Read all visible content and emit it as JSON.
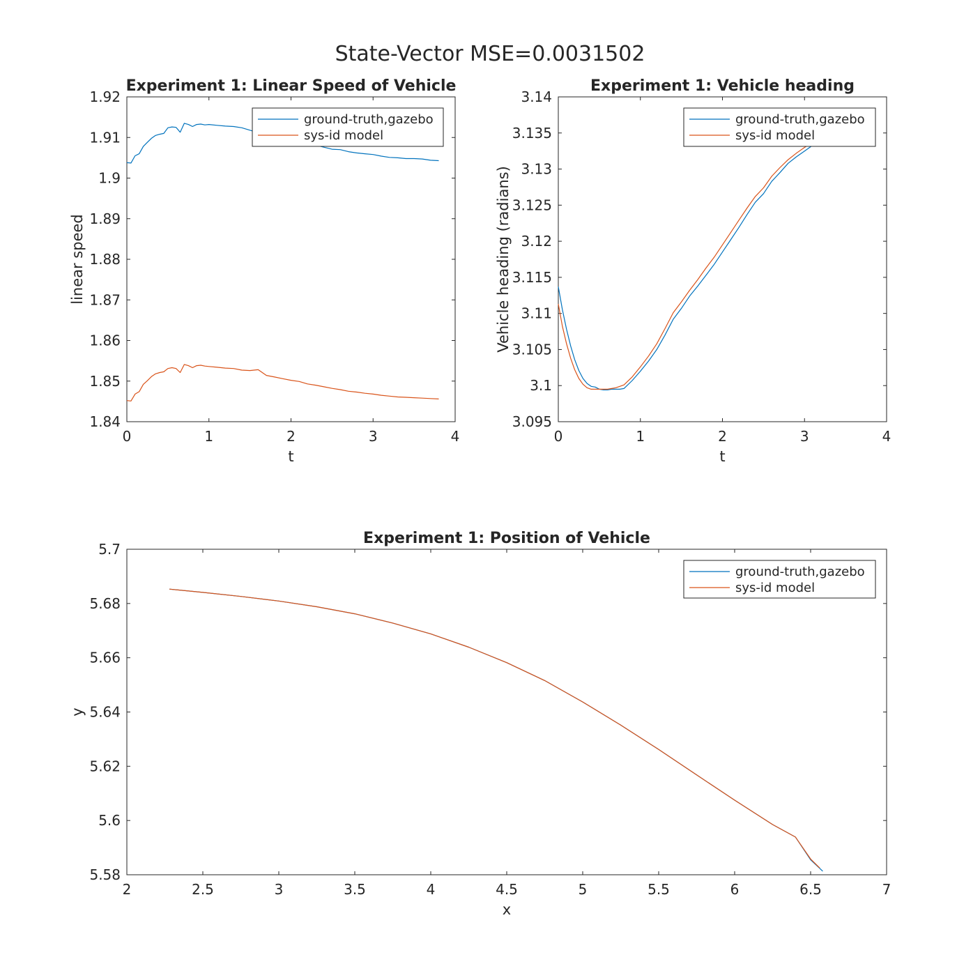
{
  "figure": {
    "title": "State-Vector MSE=0.0031502"
  },
  "colors": {
    "ground_truth": "#0072bd",
    "sysid": "#d95319",
    "axis": "#262626"
  },
  "chart_data": [
    {
      "id": "speed",
      "type": "line",
      "title": "Experiment 1: Linear Speed of Vehicle",
      "xlabel": "t",
      "ylabel": "linear speed",
      "xlim": [
        0,
        4
      ],
      "ylim": [
        1.84,
        1.92
      ],
      "xticks": [
        0,
        1,
        2,
        3,
        4
      ],
      "xtick_labels": [
        "0",
        "1",
        "2",
        "3",
        "4"
      ],
      "yticks": [
        1.84,
        1.85,
        1.86,
        1.87,
        1.88,
        1.89,
        1.9,
        1.91,
        1.92
      ],
      "ytick_labels": [
        "1.84",
        "1.85",
        "1.86",
        "1.87",
        "1.88",
        "1.89",
        "1.9",
        "1.91",
        "1.92"
      ],
      "legend": {
        "position": "top-right",
        "entries": [
          "ground-truth,gazebo",
          "sys-id model"
        ]
      },
      "grid": false,
      "series": [
        {
          "name": "ground-truth,gazebo",
          "color": "#0072bd",
          "x": [
            0,
            0.05,
            0.1,
            0.15,
            0.2,
            0.25,
            0.3,
            0.35,
            0.4,
            0.45,
            0.5,
            0.55,
            0.6,
            0.65,
            0.7,
            0.75,
            0.8,
            0.85,
            0.9,
            0.95,
            1.0,
            1.1,
            1.2,
            1.3,
            1.4,
            1.5,
            1.6,
            1.7,
            1.8,
            1.9,
            2.0,
            2.1,
            2.2,
            2.3,
            2.4,
            2.5,
            2.6,
            2.7,
            2.8,
            2.9,
            3.0,
            3.1,
            3.2,
            3.3,
            3.4,
            3.5,
            3.6,
            3.7,
            3.8
          ],
          "y": [
            1.9038,
            1.9037,
            1.9055,
            1.906,
            1.9078,
            1.9088,
            1.9098,
            1.9105,
            1.9108,
            1.911,
            1.9124,
            1.9126,
            1.9125,
            1.9113,
            1.9135,
            1.9132,
            1.9127,
            1.9132,
            1.9133,
            1.9131,
            1.9132,
            1.913,
            1.9128,
            1.9127,
            1.9124,
            1.9118,
            1.9112,
            1.911,
            1.9102,
            1.9098,
            1.9093,
            1.9088,
            1.9083,
            1.9081,
            1.9076,
            1.9071,
            1.907,
            1.9065,
            1.9062,
            1.906,
            1.9058,
            1.9054,
            1.9051,
            1.905,
            1.9048,
            1.9048,
            1.9047,
            1.9044,
            1.9043
          ]
        },
        {
          "name": "sys-id model",
          "color": "#d95319",
          "x": [
            0,
            0.05,
            0.1,
            0.15,
            0.2,
            0.25,
            0.3,
            0.35,
            0.4,
            0.45,
            0.5,
            0.55,
            0.6,
            0.65,
            0.7,
            0.75,
            0.8,
            0.85,
            0.9,
            0.95,
            1.0,
            1.1,
            1.2,
            1.3,
            1.4,
            1.5,
            1.6,
            1.7,
            1.8,
            1.9,
            2.0,
            2.1,
            2.2,
            2.3,
            2.4,
            2.5,
            2.6,
            2.7,
            2.8,
            2.9,
            3.0,
            3.1,
            3.2,
            3.3,
            3.4,
            3.5,
            3.6,
            3.7,
            3.8
          ],
          "y": [
            1.8452,
            1.8451,
            1.8468,
            1.8474,
            1.8492,
            1.8501,
            1.8511,
            1.8518,
            1.8521,
            1.8523,
            1.8531,
            1.8533,
            1.8531,
            1.8521,
            1.8541,
            1.8538,
            1.8533,
            1.8538,
            1.8539,
            1.8537,
            1.8536,
            1.8534,
            1.8532,
            1.8531,
            1.8527,
            1.8526,
            1.8528,
            1.8514,
            1.851,
            1.8506,
            1.8502,
            1.8499,
            1.8493,
            1.849,
            1.8486,
            1.8482,
            1.8479,
            1.8475,
            1.8473,
            1.847,
            1.8468,
            1.8465,
            1.8463,
            1.8461,
            1.846,
            1.8459,
            1.8458,
            1.8457,
            1.8456
          ]
        }
      ]
    },
    {
      "id": "heading",
      "type": "line",
      "title": "Experiment 1: Vehicle heading",
      "xlabel": "t",
      "ylabel": "Vehicle heading (radians)",
      "xlim": [
        0,
        4
      ],
      "ylim": [
        3.095,
        3.14
      ],
      "xticks": [
        0,
        1,
        2,
        3,
        4
      ],
      "xtick_labels": [
        "0",
        "1",
        "2",
        "3",
        "4"
      ],
      "yticks": [
        3.095,
        3.1,
        3.105,
        3.11,
        3.115,
        3.12,
        3.125,
        3.13,
        3.135,
        3.14
      ],
      "ytick_labels": [
        "3.095",
        "3.1",
        "3.105",
        "3.11",
        "3.115",
        "3.12",
        "3.125",
        "3.13",
        "3.135",
        "3.14"
      ],
      "legend": {
        "position": "top-right",
        "entries": [
          "ground-truth,gazebo",
          "sys-id model"
        ]
      },
      "grid": false,
      "series": [
        {
          "name": "ground-truth,gazebo",
          "color": "#0072bd",
          "x": [
            0,
            0.05,
            0.1,
            0.15,
            0.2,
            0.25,
            0.3,
            0.35,
            0.4,
            0.45,
            0.5,
            0.55,
            0.6,
            0.65,
            0.7,
            0.75,
            0.8,
            0.9,
            1.0,
            1.1,
            1.2,
            1.3,
            1.4,
            1.5,
            1.6,
            1.7,
            1.8,
            1.9,
            2.0,
            2.1,
            2.2,
            2.3,
            2.4,
            2.5,
            2.6,
            2.7,
            2.8,
            2.9,
            3.0,
            3.1,
            3.2,
            3.3
          ],
          "y": [
            3.1137,
            3.1105,
            3.1078,
            3.1055,
            3.1036,
            3.1021,
            3.101,
            3.1003,
            3.0999,
            3.0998,
            3.0995,
            3.0994,
            3.0994,
            3.0995,
            3.0995,
            3.0995,
            3.0996,
            3.1007,
            3.102,
            3.1034,
            3.105,
            3.107,
            3.1092,
            3.1107,
            3.1124,
            3.1138,
            3.1153,
            3.1168,
            3.1185,
            3.1202,
            3.1219,
            3.1237,
            3.1254,
            3.1266,
            3.1283,
            3.1295,
            3.1308,
            3.1317,
            3.1325,
            3.1333,
            3.134,
            3.1346
          ]
        },
        {
          "name": "sys-id model",
          "color": "#d95319",
          "x": [
            0,
            0.05,
            0.1,
            0.15,
            0.2,
            0.25,
            0.3,
            0.35,
            0.4,
            0.45,
            0.5,
            0.55,
            0.6,
            0.65,
            0.7,
            0.75,
            0.8,
            0.9,
            1.0,
            1.1,
            1.2,
            1.3,
            1.4,
            1.5,
            1.6,
            1.7,
            1.8,
            1.9,
            2.0,
            2.1,
            2.2,
            2.3,
            2.4,
            2.5,
            2.6,
            2.7,
            2.8,
            2.9,
            3.0,
            3.1,
            3.2,
            3.3
          ],
          "y": [
            3.1113,
            3.1082,
            3.1058,
            3.1038,
            3.1022,
            3.101,
            3.1002,
            3.0997,
            3.0995,
            3.0995,
            3.0995,
            3.0995,
            3.0995,
            3.0996,
            3.0997,
            3.0999,
            3.1001,
            3.1012,
            3.1026,
            3.1041,
            3.1058,
            3.1079,
            3.1101,
            3.1116,
            3.1132,
            3.1147,
            3.1163,
            3.1178,
            3.1195,
            3.1212,
            3.1229,
            3.1246,
            3.1262,
            3.1274,
            3.129,
            3.1302,
            3.1313,
            3.1322,
            3.133,
            3.1337,
            3.1343,
            3.1348
          ]
        }
      ]
    },
    {
      "id": "position",
      "type": "line",
      "title": "Experiment 1: Position of Vehicle",
      "xlabel": "x",
      "ylabel": "y",
      "xlim": [
        2,
        7
      ],
      "ylim": [
        5.58,
        5.7
      ],
      "xticks": [
        2,
        2.5,
        3,
        3.5,
        4,
        4.5,
        5,
        5.5,
        6,
        6.5,
        7
      ],
      "xtick_labels": [
        "2",
        "2.5",
        "3",
        "3.5",
        "4",
        "4.5",
        "5",
        "5.5",
        "6",
        "6.5",
        "7"
      ],
      "yticks": [
        5.58,
        5.6,
        5.62,
        5.64,
        5.66,
        5.68,
        5.7
      ],
      "ytick_labels": [
        "5.58",
        "5.6",
        "5.62",
        "5.64",
        "5.66",
        "5.68",
        "5.7"
      ],
      "legend": {
        "position": "top-right",
        "entries": [
          "ground-truth,gazebo",
          "sys-id model"
        ]
      },
      "grid": false,
      "series": [
        {
          "name": "ground-truth,gazebo",
          "color": "#0072bd",
          "x": [
            2.28,
            2.5,
            2.75,
            3.0,
            3.25,
            3.5,
            3.75,
            4.0,
            4.25,
            4.5,
            4.75,
            5.0,
            5.25,
            5.5,
            5.75,
            6.0,
            6.25,
            6.4,
            6.5,
            6.58
          ],
          "y": [
            5.6853,
            5.6841,
            5.6826,
            5.6809,
            5.6788,
            5.6762,
            5.6728,
            5.6688,
            5.6639,
            5.6582,
            5.6516,
            5.6437,
            5.6352,
            5.6262,
            5.6168,
            5.6075,
            5.5985,
            5.5939,
            5.5855,
            5.5813
          ]
        },
        {
          "name": "sys-id model",
          "color": "#d95319",
          "x": [
            2.28,
            2.5,
            2.75,
            3.0,
            3.25,
            3.5,
            3.75,
            4.0,
            4.25,
            4.5,
            4.75,
            5.0,
            5.25,
            5.5,
            5.75,
            6.0,
            6.25,
            6.4,
            6.5,
            6.56
          ],
          "y": [
            5.6853,
            5.6841,
            5.6826,
            5.6809,
            5.6788,
            5.6762,
            5.6728,
            5.6688,
            5.6639,
            5.6582,
            5.6516,
            5.6437,
            5.6352,
            5.6262,
            5.6168,
            5.6075,
            5.5985,
            5.5939,
            5.5858,
            5.5825
          ]
        }
      ]
    }
  ]
}
